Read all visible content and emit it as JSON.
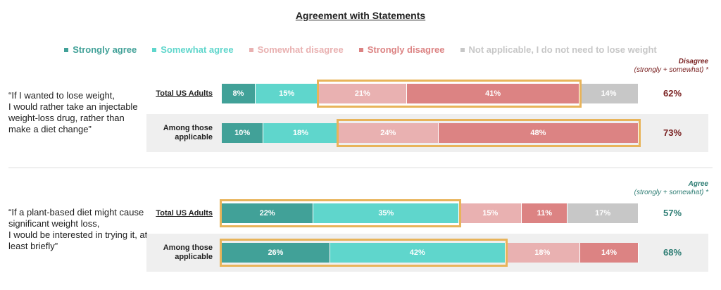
{
  "chart_data": {
    "type": "bar",
    "orientation": "horizontal",
    "stacked": true,
    "title": "Agreement with Statements",
    "legend_position": "top",
    "xlim": [
      0,
      100
    ],
    "series": [
      {
        "name": "Strongly agree",
        "color": "#41a198"
      },
      {
        "name": "Somewhat agree",
        "color": "#5fd6cc"
      },
      {
        "name": "Somewhat disagree",
        "color": "#e9b1b1"
      },
      {
        "name": "Strongly disagree",
        "color": "#dc8383"
      },
      {
        "name": "Not applicable, I do not need to lose weight",
        "color": "#c7c7c7"
      }
    ],
    "groups": [
      {
        "statement": "“If I wanted to lose weight,\nI would rather take an injectable weight-loss drug, rather than make a diet change”",
        "summary_title": "Disagree",
        "summary_sub": "(strongly + somewhat) *",
        "summary_color": "#7a2222",
        "rows": [
          {
            "label": "Total US Adults",
            "values": [
              8,
              15,
              21,
              41,
              14
            ],
            "total": "62%",
            "highlight": [
              2,
              3
            ]
          },
          {
            "label": "Among those applicable",
            "values": [
              10,
              18,
              24,
              48
            ],
            "total": "73%",
            "highlight": [
              2,
              3
            ]
          }
        ]
      },
      {
        "statement": "“If a plant-based diet might cause significant weight loss,\nI would be interested in trying it, at least briefly”",
        "summary_title": "Agree",
        "summary_sub": "(strongly + somewhat) *",
        "summary_color": "#2e7d74",
        "rows": [
          {
            "label": "Total US Adults",
            "values": [
              22,
              35,
              15,
              11,
              17
            ],
            "total": "57%",
            "highlight": [
              0,
              1
            ]
          },
          {
            "label": "Among those applicable",
            "values": [
              26,
              42,
              18,
              14
            ],
            "total": "68%",
            "highlight": [
              0,
              1
            ]
          }
        ]
      }
    ]
  }
}
